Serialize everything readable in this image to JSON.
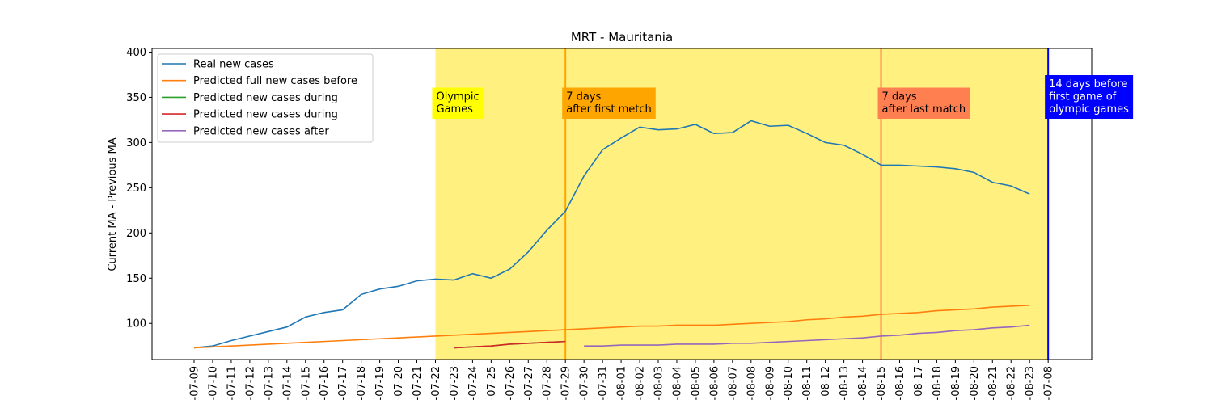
{
  "chart_data": {
    "type": "line",
    "title": "MRT - Mauritania",
    "ylabel": "Current MA - Previous MA",
    "categories": [
      "-07-09",
      "-07-10",
      "-07-11",
      "-07-12",
      "-07-13",
      "-07-14",
      "-07-15",
      "-07-16",
      "-07-17",
      "-07-18",
      "-07-19",
      "-07-20",
      "-07-21",
      "-07-22",
      "-07-23",
      "-07-24",
      "-07-25",
      "-07-26",
      "-07-27",
      "-07-28",
      "-07-29",
      "-07-30",
      "-07-31",
      "-08-01",
      "-08-02",
      "-08-03",
      "-08-04",
      "-08-05",
      "-08-06",
      "-08-07",
      "-08-08",
      "-08-09",
      "-08-10",
      "-08-11",
      "-08-12",
      "-08-13",
      "-08-14",
      "-08-15",
      "-08-16",
      "-08-17",
      "-08-18",
      "-08-19",
      "-08-20",
      "-08-21",
      "-08-22",
      "-08-23",
      "-07-08"
    ],
    "series": [
      {
        "name": "Real new cases",
        "color": "#1f77b4",
        "values": [
          73,
          75,
          81,
          86,
          91,
          96,
          107,
          112,
          115,
          132,
          138,
          141,
          147,
          149,
          148,
          155,
          150,
          160,
          179,
          203,
          224,
          263,
          292,
          305,
          317,
          314,
          315,
          320,
          310,
          311,
          324,
          318,
          319,
          310,
          300,
          297,
          287,
          275,
          275,
          274,
          273,
          271,
          267,
          256,
          252,
          243,
          null
        ]
      },
      {
        "name": "Predicted full new cases before",
        "color": "#ff7f0e",
        "values": [
          73,
          74,
          75,
          76,
          77,
          78,
          79,
          80,
          81,
          82,
          83,
          84,
          85,
          86,
          87,
          88,
          89,
          90,
          91,
          92,
          93,
          94,
          95,
          96,
          97,
          97,
          98,
          98,
          98,
          99,
          100,
          101,
          102,
          104,
          105,
          107,
          108,
          110,
          111,
          112,
          114,
          115,
          116,
          118,
          119,
          120,
          null
        ]
      },
      {
        "name": "Predicted new cases during",
        "color": "#2ca02c",
        "values": [
          null,
          null,
          null,
          null,
          null,
          null,
          null,
          null,
          null,
          null,
          null,
          null,
          null,
          null,
          73,
          74,
          75,
          77,
          78,
          79,
          80,
          null,
          null,
          null,
          null,
          null,
          null,
          null,
          null,
          null,
          null,
          null,
          null,
          null,
          null,
          null,
          null,
          null,
          null,
          null,
          null,
          null,
          null,
          null,
          null,
          null,
          null
        ]
      },
      {
        "name": "Predicted new cases during",
        "color": "#d62728",
        "values": [
          null,
          null,
          null,
          null,
          null,
          null,
          null,
          null,
          null,
          null,
          null,
          null,
          null,
          null,
          73,
          74,
          75,
          77,
          78,
          79,
          80,
          null,
          null,
          null,
          null,
          null,
          null,
          null,
          null,
          null,
          null,
          null,
          null,
          null,
          null,
          null,
          null,
          null,
          null,
          null,
          null,
          null,
          null,
          null,
          null,
          null,
          null
        ]
      },
      {
        "name": "Predicted new cases after",
        "color": "#9467bd",
        "values": [
          null,
          null,
          null,
          null,
          null,
          null,
          null,
          null,
          null,
          null,
          null,
          null,
          null,
          null,
          null,
          null,
          null,
          null,
          null,
          null,
          null,
          75,
          75,
          76,
          76,
          76,
          77,
          77,
          77,
          78,
          78,
          79,
          80,
          81,
          82,
          83,
          84,
          86,
          87,
          89,
          90,
          92,
          93,
          95,
          96,
          98,
          null
        ]
      }
    ],
    "ylim": [
      60,
      404
    ],
    "yticks": [
      100,
      150,
      200,
      250,
      300,
      350,
      400
    ],
    "legend": "upper left",
    "span": {
      "from": "-07-22",
      "to": "-07-08",
      "color": "#fff080"
    },
    "vlines": [
      {
        "x": "-07-29",
        "color": "#ffa500"
      },
      {
        "x": "-08-15",
        "color": "#ff7f50"
      },
      {
        "x": "-07-08",
        "color": "#0000ff"
      }
    ],
    "annotations": [
      {
        "x": "-07-22",
        "text": "Olympic\nGames",
        "color": "#ffff00",
        "text_color": "#000000"
      },
      {
        "x": "-07-29",
        "text": "7 days\nafter first metch",
        "color": "#ffa500",
        "text_color": "#000000"
      },
      {
        "x": "-08-15",
        "text": "7 days\nafter last match",
        "color": "#ff7f50",
        "text_color": "#000000"
      },
      {
        "x": "-07-08",
        "text": "14 days before\nfirst game of\nolympic games",
        "color": "#0000ff",
        "text_color": "#ffffff"
      }
    ]
  }
}
